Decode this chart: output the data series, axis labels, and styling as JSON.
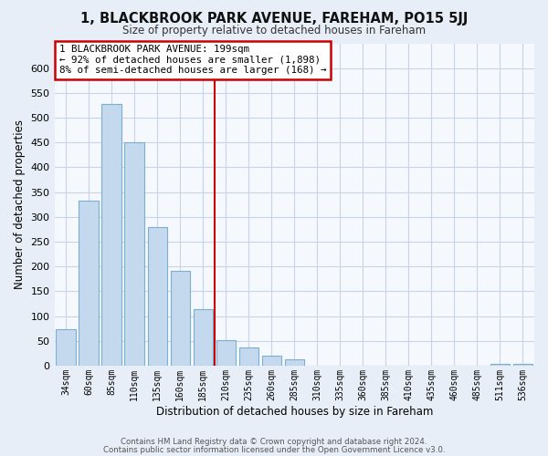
{
  "title": "1, BLACKBROOK PARK AVENUE, FAREHAM, PO15 5JJ",
  "subtitle": "Size of property relative to detached houses in Fareham",
  "xlabel": "Distribution of detached houses by size in Fareham",
  "ylabel": "Number of detached properties",
  "bar_color": "#c5d9ee",
  "bar_edge_color": "#7aafd4",
  "categories": [
    "34sqm",
    "60sqm",
    "85sqm",
    "110sqm",
    "135sqm",
    "160sqm",
    "185sqm",
    "210sqm",
    "235sqm",
    "260sqm",
    "285sqm",
    "310sqm",
    "335sqm",
    "360sqm",
    "385sqm",
    "410sqm",
    "435sqm",
    "460sqm",
    "485sqm",
    "511sqm",
    "536sqm"
  ],
  "values": [
    73,
    333,
    527,
    450,
    280,
    192,
    114,
    51,
    36,
    20,
    13,
    0,
    0,
    0,
    0,
    0,
    0,
    0,
    0,
    3,
    3
  ],
  "ylim": [
    0,
    650
  ],
  "yticks": [
    0,
    50,
    100,
    150,
    200,
    250,
    300,
    350,
    400,
    450,
    500,
    550,
    600
  ],
  "annotation_box_text": "1 BLACKBROOK PARK AVENUE: 199sqm\n← 92% of detached houses are smaller (1,898)\n8% of semi-detached houses are larger (168) →",
  "vline_x_idx": 7.0,
  "footer_line1": "Contains HM Land Registry data © Crown copyright and database right 2024.",
  "footer_line2": "Contains public sector information licensed under the Open Government Licence v3.0.",
  "bg_color": "#e8eef7",
  "plot_bg_color": "#f5f8fd",
  "grid_color": "#c8d4e8",
  "vline_color": "#cc0000",
  "box_edge_color": "#cc0000"
}
